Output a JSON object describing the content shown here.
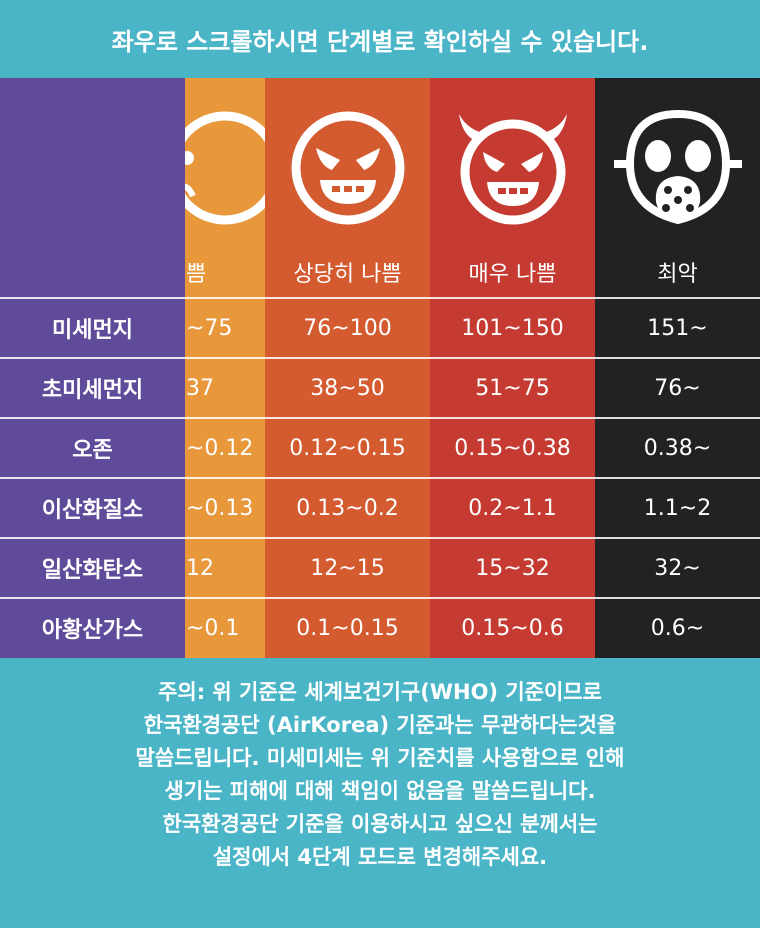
{
  "banner": "좌우로 스크롤하시면 단계별로 확인하실 수 있습니다.",
  "colors": {
    "teal": "#4bb5c8",
    "purple": "#5f4b9a",
    "orange": "#e8973a",
    "orange_red": "#d45a30",
    "red": "#c53b32",
    "black": "#222222"
  },
  "rows": [
    "미세먼지",
    "초미세먼지",
    "오존",
    "이산화질소",
    "일산화탄소",
    "아황산가스"
  ],
  "columns": [
    {
      "label": "쁨",
      "icon": "sad-face-icon",
      "values": [
        "~75",
        "37",
        "~0.12",
        "~0.13",
        "12",
        "~0.1"
      ]
    },
    {
      "label": "상당히 나쁨",
      "icon": "angry-face-icon",
      "values": [
        "76~100",
        "38~50",
        "0.12~0.15",
        "0.13~0.2",
        "12~15",
        "0.1~0.15"
      ]
    },
    {
      "label": "매우 나쁨",
      "icon": "devil-face-icon",
      "values": [
        "101~150",
        "51~75",
        "0.15~0.38",
        "0.2~1.1",
        "15~32",
        "0.15~0.6"
      ]
    },
    {
      "label": "최악",
      "icon": "gas-mask-icon",
      "values": [
        "151~",
        "76~",
        "0.38~",
        "1.1~2",
        "32~",
        "0.6~"
      ]
    }
  ],
  "note": [
    "주의: 위 기준은 세계보건기구(WHO) 기준이므로",
    "한국환경공단 (AirKorea) 기준과는 무관하다는것을",
    "말씀드립니다. 미세미세는 위 기준치를 사용함으로 인해",
    "생기는 피해에 대해 책임이 없음을 말씀드립니다.",
    "한국환경공단 기준을 이용하시고 싶으신 분께서는",
    "설정에서 4단계 모드로 변경해주세요."
  ]
}
